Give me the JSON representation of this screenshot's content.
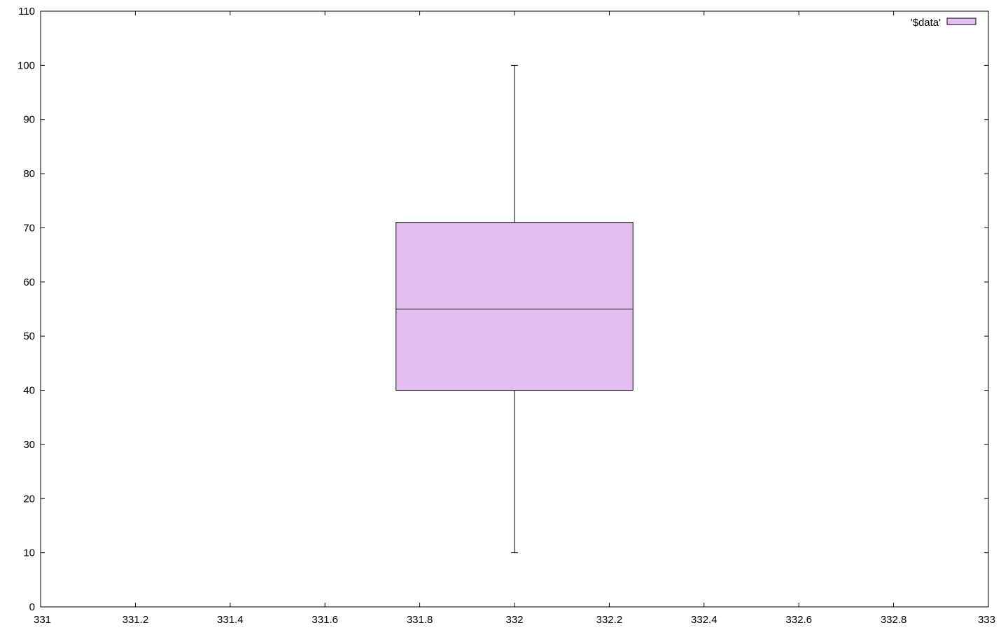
{
  "colors": {
    "box_fill": "#e4bdf1",
    "stroke": "#000000",
    "background": "#ffffff"
  },
  "chart_data": {
    "type": "box",
    "title": "",
    "xlabel": "",
    "ylabel": "",
    "xlim": [
      331,
      333
    ],
    "ylim": [
      0,
      110
    ],
    "x_ticks": [
      "331",
      "331.2",
      "331.4",
      "331.6",
      "331.8",
      "332",
      "332.2",
      "332.4",
      "332.6",
      "332.8",
      "333"
    ],
    "y_ticks": [
      "0",
      "10",
      "20",
      "30",
      "40",
      "50",
      "60",
      "70",
      "80",
      "90",
      "100",
      "110"
    ],
    "grid": false,
    "legend_position": "top-right",
    "series": [
      {
        "name": "'$data'",
        "x": 332,
        "box_width": 0.5,
        "min": 10,
        "q1": 40,
        "median": 55,
        "q3": 71,
        "max": 100
      }
    ]
  }
}
